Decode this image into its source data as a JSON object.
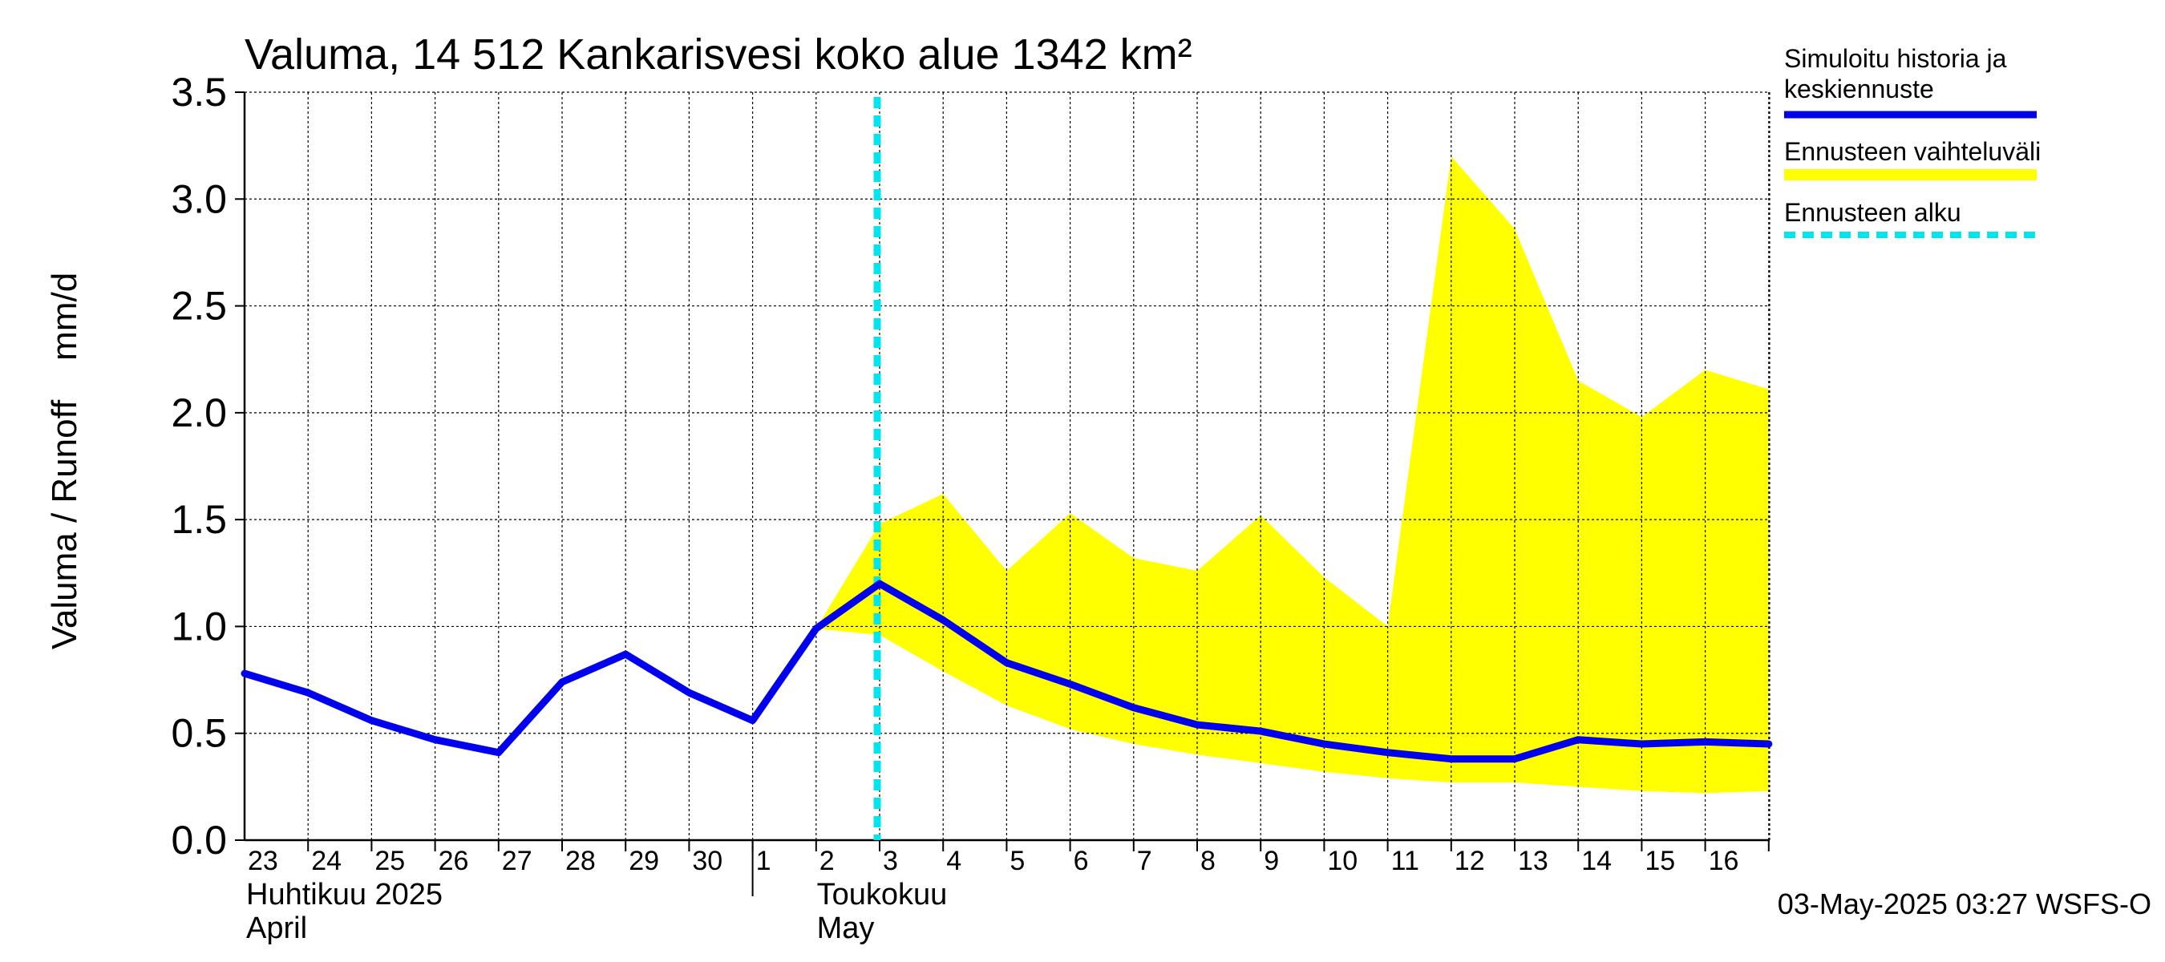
{
  "chart_data": {
    "type": "line",
    "title": "Valuma, 14 512 Kankarisvesi koko alue 1342 km²",
    "ylabel": "Valuma / Runoff    mm/d",
    "ylim": [
      0,
      3.5
    ],
    "yticks": [
      "0.0",
      "0.5",
      "1.0",
      "1.5",
      "2.0",
      "2.5",
      "3.0",
      "3.5"
    ],
    "xlim": [
      "2025-04-23",
      "2025-05-17"
    ],
    "x_day_labels": [
      "23",
      "24",
      "25",
      "26",
      "27",
      "28",
      "29",
      "30",
      "1",
      "2",
      "3",
      "4",
      "5",
      "6",
      "7",
      "8",
      "9",
      "10",
      "11",
      "12",
      "13",
      "14",
      "15",
      "16"
    ],
    "month_labels": [
      {
        "fi": "Huhtikuu  2025",
        "en": "April"
      },
      {
        "fi": "Toukokuu",
        "en": "May"
      }
    ],
    "grid": true,
    "legend_position": "right",
    "series": [
      {
        "name": "Simuloitu historia ja keskiennuste",
        "color": "#0000ee",
        "x": [
          "2025-04-23",
          "2025-04-24",
          "2025-04-25",
          "2025-04-26",
          "2025-04-27",
          "2025-04-28",
          "2025-04-29",
          "2025-04-30",
          "2025-05-01",
          "2025-05-02",
          "2025-05-03",
          "2025-05-04",
          "2025-05-05",
          "2025-05-06",
          "2025-05-07",
          "2025-05-08",
          "2025-05-09",
          "2025-05-10",
          "2025-05-11",
          "2025-05-12",
          "2025-05-13",
          "2025-05-14",
          "2025-05-15",
          "2025-05-16",
          "2025-05-17"
        ],
        "y": [
          0.78,
          0.69,
          0.56,
          0.47,
          0.41,
          0.74,
          0.87,
          0.69,
          0.56,
          0.99,
          1.2,
          1.03,
          0.83,
          0.73,
          0.62,
          0.54,
          0.51,
          0.45,
          0.41,
          0.38,
          0.38,
          0.47,
          0.45,
          0.46,
          0.45
        ]
      },
      {
        "name": "Ennusteen vaihteluväli",
        "color": "#ffff00",
        "x": [
          "2025-05-02",
          "2025-05-03",
          "2025-05-04",
          "2025-05-05",
          "2025-05-06",
          "2025-05-07",
          "2025-05-08",
          "2025-05-09",
          "2025-05-10",
          "2025-05-11",
          "2025-05-12",
          "2025-05-13",
          "2025-05-14",
          "2025-05-15",
          "2025-05-16",
          "2025-05-17"
        ],
        "upper": [
          0.99,
          1.48,
          1.62,
          1.26,
          1.53,
          1.32,
          1.26,
          1.52,
          1.23,
          1.0,
          3.2,
          2.86,
          2.15,
          1.98,
          2.2,
          2.11
        ],
        "lower": [
          0.99,
          0.96,
          0.79,
          0.63,
          0.52,
          0.45,
          0.4,
          0.36,
          0.32,
          0.29,
          0.27,
          0.27,
          0.25,
          0.23,
          0.22,
          0.23
        ]
      },
      {
        "name": "Ennusteen alku",
        "color": "#00e5ee",
        "x": [
          "2025-05-03"
        ]
      }
    ],
    "footer": "03-May-2025 03:27 WSFS-O"
  }
}
